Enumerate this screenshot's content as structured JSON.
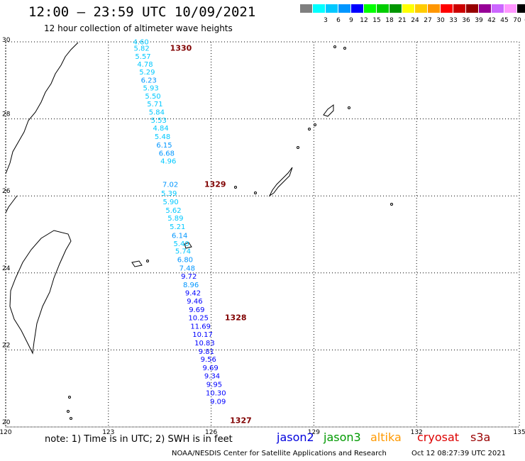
{
  "header": {
    "title": "12:00 – 23:59 UTC 10/09/2021",
    "subtitle": "12 hour collection of altimeter wave heights"
  },
  "scale": {
    "unit": "(ft)",
    "bins": [
      {
        "label": "",
        "color": "#7f7f7f"
      },
      {
        "label": "3",
        "color": "#00ffff"
      },
      {
        "label": "6",
        "color": "#00c8ff"
      },
      {
        "label": "9",
        "color": "#0096ff"
      },
      {
        "label": "12",
        "color": "#0000ff"
      },
      {
        "label": "15",
        "color": "#00ff00"
      },
      {
        "label": "18",
        "color": "#00cd00"
      },
      {
        "label": "21",
        "color": "#009600"
      },
      {
        "label": "24",
        "color": "#ffff00"
      },
      {
        "label": "27",
        "color": "#ffcc00"
      },
      {
        "label": "30",
        "color": "#ff9600"
      },
      {
        "label": "33",
        "color": "#ff0000"
      },
      {
        "label": "36",
        "color": "#cc0000"
      },
      {
        "label": "39",
        "color": "#960000"
      },
      {
        "label": "42",
        "color": "#960096"
      },
      {
        "label": "45",
        "color": "#cc66ff"
      },
      {
        "label": "70",
        "color": "#ff96ff"
      },
      {
        "label": "",
        "color": "#000000"
      }
    ]
  },
  "axes": {
    "lat_labels": [
      "30",
      "28",
      "26",
      "24",
      "22",
      "20"
    ],
    "lon_labels": [
      "120",
      "123",
      "126",
      "129",
      "132",
      "135"
    ],
    "lat_range": [
      20,
      30
    ],
    "lon_range": [
      120,
      135
    ]
  },
  "passes": [
    {
      "id": "1330",
      "label_lat": 29.77,
      "label_lon": 124.8
    },
    {
      "id": "1329",
      "label_lat": 26.23,
      "label_lon": 125.8
    },
    {
      "id": "1328",
      "label_lat": 22.77,
      "label_lon": 126.4
    },
    {
      "id": "1327",
      "label_lat": 20.1,
      "label_lon": 126.55
    }
  ],
  "track": [
    {
      "v": "4.60",
      "lat": 29.94,
      "lon": 123.95
    },
    {
      "v": "5.82",
      "lat": 29.77,
      "lon": 123.97
    },
    {
      "v": "5.57",
      "lat": 29.56,
      "lon": 124.01
    },
    {
      "v": "4.78",
      "lat": 29.36,
      "lon": 124.07
    },
    {
      "v": "5.29",
      "lat": 29.15,
      "lon": 124.13
    },
    {
      "v": "6.23",
      "lat": 28.94,
      "lon": 124.18
    },
    {
      "v": "5.93",
      "lat": 28.74,
      "lon": 124.24
    },
    {
      "v": "5.50",
      "lat": 28.53,
      "lon": 124.3
    },
    {
      "v": "5.71",
      "lat": 28.32,
      "lon": 124.36
    },
    {
      "v": "5.84",
      "lat": 28.11,
      "lon": 124.41
    },
    {
      "v": "5.53",
      "lat": 27.9,
      "lon": 124.47
    },
    {
      "v": "4.84",
      "lat": 27.7,
      "lon": 124.53
    },
    {
      "v": "5.48",
      "lat": 27.48,
      "lon": 124.58
    },
    {
      "v": "6.15",
      "lat": 27.26,
      "lon": 124.63
    },
    {
      "v": "6.68",
      "lat": 27.04,
      "lon": 124.7
    },
    {
      "v": "4.96",
      "lat": 26.84,
      "lon": 124.75
    },
    {
      "v": "7.02",
      "lat": 26.23,
      "lon": 124.81
    },
    {
      "v": "5.39",
      "lat": 26.0,
      "lon": 124.77
    },
    {
      "v": "5.90",
      "lat": 25.78,
      "lon": 124.82
    },
    {
      "v": "5.62",
      "lat": 25.56,
      "lon": 124.9
    },
    {
      "v": "5.89",
      "lat": 25.36,
      "lon": 124.96
    },
    {
      "v": "5.21",
      "lat": 25.14,
      "lon": 125.02
    },
    {
      "v": "6.14",
      "lat": 24.91,
      "lon": 125.08
    },
    {
      "v": "5.40",
      "lat": 24.7,
      "lon": 125.13
    },
    {
      "v": "5.74",
      "lat": 24.5,
      "lon": 125.18
    },
    {
      "v": "6.80",
      "lat": 24.28,
      "lon": 125.24
    },
    {
      "v": "7.48",
      "lat": 24.06,
      "lon": 125.3
    },
    {
      "v": "9.72",
      "lat": 23.85,
      "lon": 125.35
    },
    {
      "v": "8.96",
      "lat": 23.63,
      "lon": 125.41
    },
    {
      "v": "9.42",
      "lat": 23.42,
      "lon": 125.47
    },
    {
      "v": "9.46",
      "lat": 23.2,
      "lon": 125.52
    },
    {
      "v": "9.69",
      "lat": 22.98,
      "lon": 125.58
    },
    {
      "v": "10.25",
      "lat": 22.77,
      "lon": 125.63
    },
    {
      "v": "11.69",
      "lat": 22.55,
      "lon": 125.69
    },
    {
      "v": "10.17",
      "lat": 22.34,
      "lon": 125.75
    },
    {
      "v": "10.83",
      "lat": 22.12,
      "lon": 125.81
    },
    {
      "v": "9.81",
      "lat": 21.9,
      "lon": 125.86
    },
    {
      "v": "9.56",
      "lat": 21.69,
      "lon": 125.92
    },
    {
      "v": "9.69",
      "lat": 21.47,
      "lon": 125.98
    },
    {
      "v": "9.34",
      "lat": 21.26,
      "lon": 126.03
    },
    {
      "v": "9.95",
      "lat": 21.04,
      "lon": 126.09
    },
    {
      "v": "10.30",
      "lat": 20.82,
      "lon": 126.14
    },
    {
      "v": "9.09",
      "lat": 20.6,
      "lon": 126.2
    }
  ],
  "footer": {
    "note": "note:  1) Time is in UTC;  2) SWH is in feet",
    "credit": "NOAA/NESDIS Center for Satellite Applications and Research",
    "timestamp": "Oct 12 08:27:39 UTC 2021",
    "satellites": [
      {
        "name": "jason2",
        "color": "#0000dd"
      },
      {
        "name": "jason3",
        "color": "#009900"
      },
      {
        "name": "altika",
        "color": "#ff9900"
      },
      {
        "name": "cryosat",
        "color": "#dd0000"
      },
      {
        "name": "s3a",
        "color": "#990000"
      }
    ]
  },
  "colors": {
    "grid": "#000000",
    "pass_label": "#800000",
    "land": "#000000"
  }
}
